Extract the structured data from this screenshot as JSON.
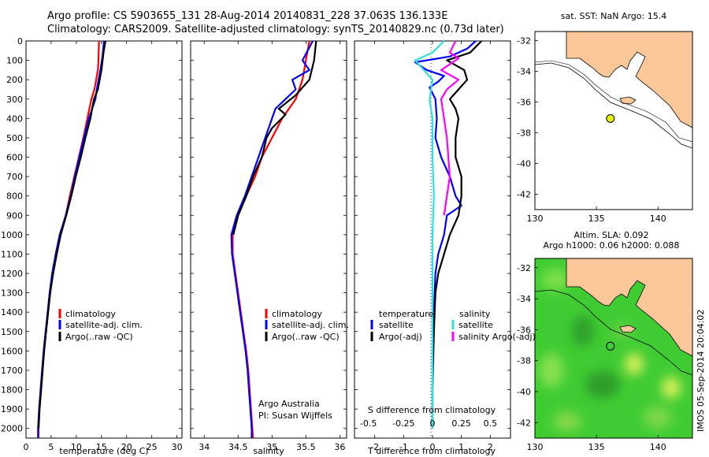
{
  "header": {
    "line1": "Argo profile: CS 5903655_131 28-Aug-2014 20140831_228 37.063S 136.133E",
    "line2": "Climatology: CARS2009. Satellite-adjusted climatology: synTS_20140829.nc (0.73d later)"
  },
  "colors": {
    "climatology": "#ff0000",
    "satellite": "#0000ff",
    "argo": "#000000",
    "sal_satellite": "#33e0e0",
    "sal_argo": "#ff00ff",
    "land": "#fcc89a"
  },
  "chart_data": [
    {
      "id": "temperature",
      "type": "line",
      "xlabel": "temperature (deg C)",
      "xlim": [
        0,
        31
      ],
      "ylim": [
        0,
        2050
      ],
      "y_reversed": true,
      "xticks": [
        0,
        5,
        10,
        15,
        20,
        25,
        30
      ],
      "yticks": [
        0,
        100,
        200,
        300,
        400,
        500,
        600,
        700,
        800,
        900,
        1000,
        1100,
        1200,
        1300,
        1400,
        1500,
        1600,
        1700,
        1800,
        1900,
        2000
      ],
      "legend": [
        "climatology",
        "satellite-adj. clim.",
        "Argo(..raw -QC)"
      ],
      "series": [
        {
          "name": "climatology",
          "color": "red",
          "points": [
            [
              14.5,
              0
            ],
            [
              14.4,
              100
            ],
            [
              14.3,
              150
            ],
            [
              13.6,
              250
            ],
            [
              13.0,
              300
            ],
            [
              12.2,
              400
            ],
            [
              11.4,
              500
            ],
            [
              10.5,
              600
            ],
            [
              9.6,
              700
            ],
            [
              8.7,
              800
            ],
            [
              7.9,
              900
            ],
            [
              6.8,
              1000
            ],
            [
              6.0,
              1100
            ],
            [
              5.3,
              1200
            ],
            [
              4.8,
              1300
            ],
            [
              4.4,
              1400
            ],
            [
              4.0,
              1500
            ],
            [
              3.6,
              1600
            ],
            [
              3.3,
              1700
            ],
            [
              3.0,
              1800
            ],
            [
              2.7,
              1900
            ],
            [
              2.5,
              2000
            ],
            [
              2.5,
              2050
            ]
          ]
        },
        {
          "name": "satellite-adj. clim.",
          "color": "blue",
          "points": [
            [
              15.5,
              0
            ],
            [
              15.2,
              80
            ],
            [
              14.8,
              150
            ],
            [
              14.2,
              230
            ],
            [
              13.8,
              300
            ],
            [
              12.5,
              400
            ],
            [
              11.5,
              500
            ],
            [
              10.6,
              600
            ],
            [
              9.7,
              700
            ],
            [
              8.9,
              800
            ],
            [
              7.9,
              900
            ],
            [
              6.7,
              1000
            ],
            [
              5.9,
              1100
            ],
            [
              5.2,
              1200
            ],
            [
              4.7,
              1300
            ],
            [
              4.3,
              1400
            ],
            [
              3.9,
              1500
            ],
            [
              3.5,
              1600
            ],
            [
              3.2,
              1700
            ],
            [
              2.9,
              1800
            ],
            [
              2.6,
              1900
            ],
            [
              2.4,
              2000
            ],
            [
              2.4,
              2050
            ]
          ]
        },
        {
          "name": "Argo(..raw -QC)",
          "color": "black",
          "points": [
            [
              15.8,
              0
            ],
            [
              15.4,
              60
            ],
            [
              15.0,
              150
            ],
            [
              14.3,
              250
            ],
            [
              13.5,
              300
            ],
            [
              12.8,
              400
            ],
            [
              11.8,
              500
            ],
            [
              10.9,
              600
            ],
            [
              9.9,
              700
            ],
            [
              9.0,
              800
            ],
            [
              8.0,
              900
            ],
            [
              6.9,
              1000
            ],
            [
              6.1,
              1100
            ],
            [
              5.4,
              1200
            ],
            [
              4.8,
              1300
            ],
            [
              4.4,
              1400
            ],
            [
              4.0,
              1500
            ],
            [
              3.6,
              1600
            ],
            [
              3.3,
              1700
            ],
            [
              3.0,
              1800
            ],
            [
              2.7,
              1900
            ],
            [
              2.5,
              2000
            ]
          ]
        }
      ]
    },
    {
      "id": "salinity",
      "type": "line",
      "xlabel": "salinity",
      "xlim": [
        33.8,
        36.1
      ],
      "ylim": [
        0,
        2050
      ],
      "y_reversed": true,
      "xticks": [
        34,
        34.5,
        35,
        35.5,
        36
      ],
      "legend": [
        "climatology",
        "satellite-adj. clim.",
        "Argo(..raw -QC)"
      ],
      "annotation": [
        "Argo Australia",
        "PI: Susan Wijffels"
      ],
      "series": [
        {
          "name": "climatology",
          "color": "red",
          "points": [
            [
              35.55,
              0
            ],
            [
              35.5,
              100
            ],
            [
              35.45,
              200
            ],
            [
              35.35,
              300
            ],
            [
              35.15,
              400
            ],
            [
              35.0,
              500
            ],
            [
              34.85,
              600
            ],
            [
              34.75,
              700
            ],
            [
              34.62,
              800
            ],
            [
              34.5,
              900
            ],
            [
              34.42,
              1000
            ],
            [
              34.42,
              1100
            ],
            [
              34.46,
              1200
            ],
            [
              34.5,
              1300
            ],
            [
              34.54,
              1400
            ],
            [
              34.58,
              1500
            ],
            [
              34.62,
              1600
            ],
            [
              34.65,
              1700
            ],
            [
              34.67,
              1800
            ],
            [
              34.69,
              1900
            ],
            [
              34.71,
              2000
            ],
            [
              34.72,
              2050
            ]
          ]
        },
        {
          "name": "satellite-adj. clim.",
          "color": "blue",
          "points": [
            [
              35.6,
              0
            ],
            [
              35.45,
              100
            ],
            [
              35.55,
              150
            ],
            [
              35.3,
              200
            ],
            [
              35.35,
              250
            ],
            [
              35.05,
              350
            ],
            [
              34.95,
              450
            ],
            [
              34.8,
              600
            ],
            [
              34.7,
              700
            ],
            [
              34.6,
              800
            ],
            [
              34.48,
              900
            ],
            [
              34.4,
              1000
            ],
            [
              34.41,
              1100
            ],
            [
              34.45,
              1200
            ],
            [
              34.49,
              1300
            ],
            [
              34.53,
              1400
            ],
            [
              34.57,
              1500
            ],
            [
              34.61,
              1600
            ],
            [
              34.64,
              1700
            ],
            [
              34.66,
              1800
            ],
            [
              34.68,
              1900
            ],
            [
              34.7,
              2000
            ],
            [
              34.7,
              2050
            ]
          ]
        },
        {
          "name": "Argo(..raw -QC)",
          "color": "black",
          "points": [
            [
              35.65,
              0
            ],
            [
              35.62,
              100
            ],
            [
              35.55,
              200
            ],
            [
              35.35,
              280
            ],
            [
              35.1,
              350
            ],
            [
              35.2,
              380
            ],
            [
              35.0,
              450
            ],
            [
              34.92,
              500
            ],
            [
              34.85,
              600
            ],
            [
              34.72,
              700
            ],
            [
              34.62,
              800
            ],
            [
              34.5,
              900
            ],
            [
              34.43,
              1000
            ]
          ]
        }
      ]
    },
    {
      "id": "difference",
      "type": "line",
      "xlabel_top": "S difference from climatology",
      "xlabel": "T difference from climatology",
      "xlim": [
        -2.7,
        2.7
      ],
      "ylim": [
        0,
        2050
      ],
      "y_reversed": true,
      "xticks": [
        -2,
        -1,
        0,
        1,
        2
      ],
      "xticks_top": [
        "-0.5",
        "-0.25",
        "0",
        "0.25",
        "0.5"
      ],
      "legend_temperature_title": "temperature",
      "legend_temperature": [
        "satellite",
        "Argo(-adj)"
      ],
      "legend_salinity_title": "salinity",
      "legend_salinity": [
        "satellite",
        "salinity Argo(-adj)"
      ],
      "series": [
        {
          "name": "T satellite",
          "color": "blue",
          "points": [
            [
              1.5,
              0
            ],
            [
              1.2,
              40
            ],
            [
              0.6,
              80
            ],
            [
              -0.6,
              110
            ],
            [
              -0.2,
              150
            ],
            [
              0.4,
              180
            ],
            [
              0.2,
              210
            ],
            [
              -0.1,
              240
            ],
            [
              0.1,
              300
            ],
            [
              0.15,
              400
            ],
            [
              0.1,
              500
            ],
            [
              0.3,
              600
            ],
            [
              0.6,
              700
            ],
            [
              0.8,
              800
            ],
            [
              1.0,
              850
            ],
            [
              0.5,
              900
            ],
            [
              0.4,
              1000
            ],
            [
              0.2,
              1100
            ],
            [
              0.1,
              1200
            ],
            [
              0.05,
              1400
            ],
            [
              0.0,
              1600
            ],
            [
              0.0,
              2000
            ]
          ]
        },
        {
          "name": "T Argo(-adj)",
          "color": "black",
          "points": [
            [
              1.7,
              0
            ],
            [
              1.3,
              60
            ],
            [
              0.5,
              100
            ],
            [
              1.1,
              150
            ],
            [
              1.2,
              200
            ],
            [
              0.9,
              250
            ],
            [
              0.6,
              300
            ],
            [
              0.8,
              350
            ],
            [
              0.9,
              400
            ],
            [
              0.8,
              500
            ],
            [
              0.8,
              600
            ],
            [
              1.0,
              700
            ],
            [
              1.0,
              800
            ],
            [
              0.9,
              900
            ],
            [
              0.6,
              1000
            ],
            [
              0.4,
              1100
            ],
            [
              0.2,
              1200
            ],
            [
              0.1,
              1300
            ],
            [
              0.05,
              1500
            ],
            [
              0.0,
              1800
            ],
            [
              0.0,
              2000
            ]
          ]
        },
        {
          "name": "S satellite",
          "color": "cyan",
          "points": [
            [
              0.4,
              0
            ],
            [
              0.0,
              60
            ],
            [
              -0.6,
              100
            ],
            [
              -0.3,
              150
            ],
            [
              0.0,
              200
            ],
            [
              -0.1,
              300
            ],
            [
              0.0,
              400
            ],
            [
              0.0,
              600
            ],
            [
              0.05,
              800
            ],
            [
              0.0,
              1000
            ],
            [
              0.0,
              1400
            ],
            [
              0.0,
              2000
            ]
          ]
        },
        {
          "name": "S Argo(-adj)",
          "color": "magenta",
          "points": [
            [
              0.8,
              0
            ],
            [
              0.6,
              60
            ],
            [
              0.9,
              90
            ],
            [
              0.3,
              150
            ],
            [
              0.9,
              200
            ],
            [
              0.5,
              250
            ],
            [
              0.3,
              300
            ],
            [
              0.4,
              400
            ],
            [
              0.5,
              500
            ],
            [
              0.6,
              700
            ],
            [
              0.5,
              800
            ],
            [
              0.4,
              900
            ]
          ]
        }
      ]
    }
  ],
  "sst_map": {
    "title": "sat. SST: NaN Argo: 15.4",
    "xticks": [
      "130",
      "135",
      "140"
    ],
    "yticks": [
      "-32",
      "-34",
      "-36",
      "-38",
      "-40",
      "-42"
    ],
    "xlim": [
      130,
      142.8
    ],
    "ylim": [
      -43,
      -31.4
    ],
    "argo_position": [
      136.133,
      -37.063
    ]
  },
  "sla_map": {
    "title_line1": "Altim. SLA: 0.092",
    "title_line2": "Argo h1000: 0.06 h2000: 0.088",
    "xticks": [
      "130",
      "135",
      "140"
    ],
    "yticks": [
      "-32",
      "-34",
      "-36",
      "-38",
      "-40",
      "-42"
    ],
    "xlim": [
      130,
      142.8
    ],
    "ylim": [
      -43,
      -31.4
    ],
    "argo_position": [
      136.133,
      -37.063
    ]
  },
  "side_text": "IMOS 05-Sep-2014 20:04:02"
}
